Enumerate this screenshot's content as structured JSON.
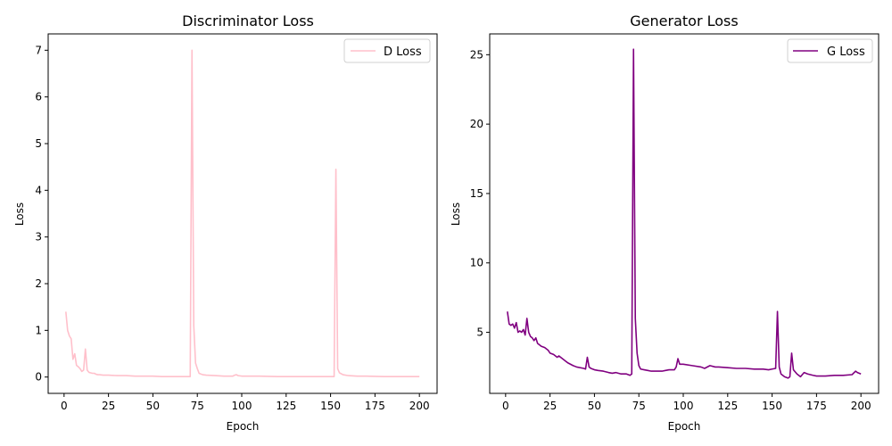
{
  "chart_data": [
    {
      "type": "line",
      "title": "Discriminator Loss",
      "xlabel": "Epoch",
      "ylabel": "Loss",
      "xlim": [
        -8.95,
        209.95
      ],
      "ylim": [
        -0.35,
        7.35
      ],
      "xticks": [
        0,
        25,
        50,
        75,
        100,
        125,
        150,
        175,
        200
      ],
      "yticks": [
        0,
        1,
        2,
        3,
        4,
        5,
        6,
        7
      ],
      "grid": false,
      "legend": "top-right",
      "series": [
        {
          "name": "D Loss",
          "color": "#ffc0cb",
          "x": [
            1,
            2,
            3,
            4,
            5,
            6,
            7,
            8,
            9,
            10,
            11,
            12,
            13,
            14,
            15,
            16,
            17,
            18,
            19,
            20,
            22,
            25,
            30,
            35,
            40,
            45,
            50,
            55,
            60,
            65,
            70,
            71,
            72,
            73,
            74,
            75,
            76,
            78,
            80,
            85,
            90,
            95,
            96,
            97,
            98,
            100,
            105,
            110,
            120,
            130,
            140,
            150,
            152,
            153,
            154,
            155,
            157,
            160,
            165,
            170,
            180,
            190,
            200
          ],
          "y": [
            1.4,
            1.0,
            0.88,
            0.82,
            0.38,
            0.5,
            0.25,
            0.22,
            0.18,
            0.12,
            0.15,
            0.6,
            0.15,
            0.1,
            0.09,
            0.08,
            0.08,
            0.06,
            0.05,
            0.05,
            0.04,
            0.04,
            0.03,
            0.03,
            0.02,
            0.02,
            0.02,
            0.01,
            0.01,
            0.01,
            0.01,
            0.01,
            7.0,
            1.1,
            0.3,
            0.18,
            0.08,
            0.05,
            0.04,
            0.03,
            0.02,
            0.02,
            0.04,
            0.05,
            0.03,
            0.02,
            0.02,
            0.02,
            0.01,
            0.01,
            0.01,
            0.01,
            0.01,
            4.45,
            0.18,
            0.09,
            0.05,
            0.03,
            0.02,
            0.02,
            0.01,
            0.01,
            0.01
          ]
        }
      ]
    },
    {
      "type": "line",
      "title": "Generator Loss",
      "xlabel": "Epoch",
      "ylabel": "Loss",
      "xlim": [
        -8.95,
        209.95
      ],
      "ylim": [
        0.6,
        26.5
      ],
      "xticks": [
        0,
        25,
        50,
        75,
        100,
        125,
        150,
        175,
        200
      ],
      "yticks": [
        5,
        10,
        15,
        20,
        25
      ],
      "grid": false,
      "legend": "top-right",
      "series": [
        {
          "name": "G Loss",
          "color": "#800080",
          "x": [
            1,
            2,
            3,
            4,
            5,
            6,
            7,
            8,
            9,
            10,
            11,
            12,
            13,
            14,
            15,
            16,
            17,
            18,
            19,
            20,
            22,
            24,
            25,
            27,
            29,
            30,
            32,
            35,
            38,
            40,
            44,
            45,
            46,
            47,
            48,
            50,
            52,
            55,
            58,
            60,
            62,
            65,
            68,
            70,
            71,
            72,
            73,
            74,
            75,
            76,
            78,
            80,
            82,
            85,
            88,
            90,
            92,
            95,
            96,
            97,
            98,
            100,
            105,
            110,
            112,
            115,
            118,
            120,
            125,
            130,
            135,
            140,
            145,
            148,
            150,
            152,
            153,
            154,
            155,
            157,
            159,
            160,
            161,
            162,
            164,
            166,
            168,
            170,
            173,
            175,
            180,
            185,
            190,
            195,
            197,
            198,
            200
          ],
          "y": [
            6.5,
            5.6,
            5.5,
            5.6,
            5.3,
            5.7,
            5.0,
            5.1,
            5.0,
            5.2,
            4.8,
            6.0,
            5.0,
            4.7,
            4.6,
            4.4,
            4.6,
            4.2,
            4.1,
            4.0,
            3.9,
            3.7,
            3.5,
            3.4,
            3.2,
            3.3,
            3.1,
            2.8,
            2.6,
            2.5,
            2.4,
            2.35,
            3.2,
            2.5,
            2.4,
            2.3,
            2.25,
            2.2,
            2.1,
            2.05,
            2.1,
            2.0,
            2.0,
            1.9,
            2.0,
            25.4,
            6.0,
            3.5,
            2.6,
            2.35,
            2.3,
            2.25,
            2.2,
            2.2,
            2.2,
            2.25,
            2.3,
            2.3,
            2.5,
            3.1,
            2.7,
            2.7,
            2.6,
            2.5,
            2.4,
            2.6,
            2.5,
            2.5,
            2.45,
            2.4,
            2.4,
            2.35,
            2.35,
            2.3,
            2.35,
            2.4,
            6.5,
            2.5,
            2.0,
            1.8,
            1.7,
            1.8,
            3.5,
            2.3,
            2.0,
            1.8,
            2.1,
            2.0,
            1.9,
            1.85,
            1.85,
            1.9,
            1.9,
            1.95,
            2.2,
            2.1,
            2.0
          ]
        }
      ]
    }
  ]
}
